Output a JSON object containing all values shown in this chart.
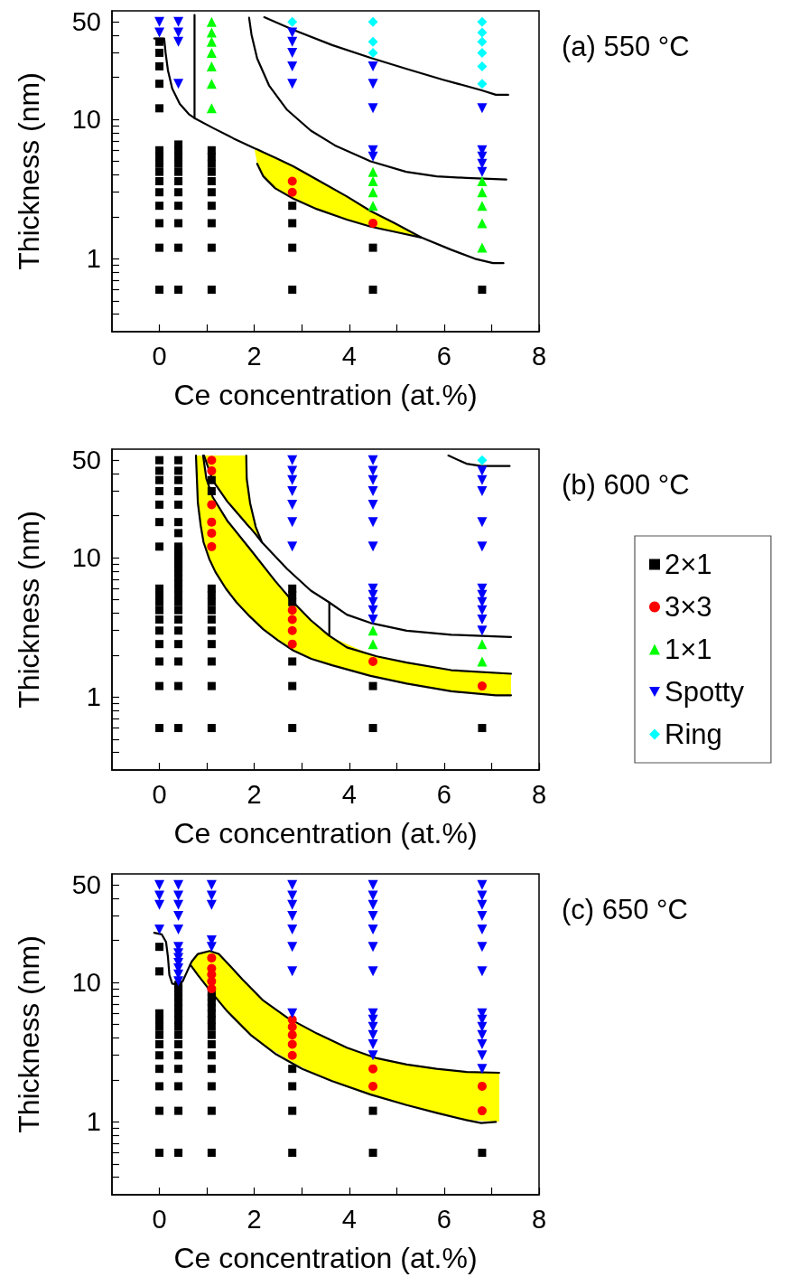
{
  "chart_data": [
    {
      "type": "scatter",
      "annotations": [
        "(a) 550 °C"
      ],
      "xlabel": "Ce concentration (at.%)",
      "ylabel": "Thickness (nm)",
      "xlim": [
        -1,
        8
      ],
      "ylim": [
        0.3,
        60
      ],
      "log": "y",
      "grid": false,
      "legend": false,
      "xticks": [
        0,
        {
          "value": 1,
          "label": null
        },
        2,
        {
          "value": 3,
          "label": null
        },
        4,
        {
          "value": 5,
          "label": null
        },
        6,
        {
          "value": 7,
          "label": null
        },
        8
      ],
      "yticks": [
        {
          "value": 0.4,
          "label": null
        },
        {
          "value": 0.5,
          "label": null
        },
        {
          "value": 0.6,
          "label": null
        },
        {
          "value": 0.7,
          "label": null
        },
        {
          "value": 0.8,
          "label": null
        },
        {
          "value": 0.9,
          "label": null
        },
        1,
        {
          "value": 2,
          "label": null
        },
        {
          "value": 3,
          "label": null
        },
        {
          "value": 4,
          "label": null
        },
        {
          "value": 5,
          "label": null
        },
        {
          "value": 6,
          "label": null
        },
        {
          "value": 7,
          "label": null
        },
        {
          "value": 8,
          "label": null
        },
        {
          "value": 9,
          "label": null
        },
        10,
        {
          "value": 20,
          "label": null
        },
        {
          "value": 30,
          "label": null
        },
        {
          "value": 40,
          "label": null
        },
        50
      ],
      "series": [
        {
          "type": "line",
          "color": "#000000",
          "x": [
            -0.11,
            0.1,
            0.13,
            0.18,
            0.27,
            0.43,
            0.62,
            0.74,
            1.12,
            1.56,
            2,
            2.06,
            2.19,
            2.44,
            2.82,
            3.32,
            3.95,
            4.45,
            4.96,
            5.52,
            6.15,
            6.65,
            7.03,
            7.25
          ],
          "values": [
            38,
            38,
            30,
            22.4,
            16.6,
            12.9,
            10.9,
            10.2,
            8.7,
            7.3,
            6.2,
            6.1,
            5.8,
            5.3,
            4.6,
            3.7,
            2.8,
            2.2,
            1.8,
            1.42,
            1.16,
            1,
            0.93,
            0.93
          ],
          "lower": [
            null,
            null,
            null,
            null,
            null,
            null,
            null,
            null,
            null,
            null,
            6.2,
            4.8,
            3.9,
            3.2,
            2.7,
            2.27,
            1.91,
            1.7,
            1.56,
            1.42,
            null,
            null,
            null,
            null
          ],
          "upper": [
            null,
            null,
            null,
            null,
            null,
            null,
            null,
            null,
            null,
            null,
            6.2,
            6.1,
            5.8,
            5.3,
            4.6,
            3.7,
            2.8,
            2.2,
            1.8,
            1.42,
            null,
            null,
            null,
            null
          ]
        },
        {
          "type": "line",
          "color": "#000000",
          "x": [
            0.74,
            0.74
          ],
          "values": [
            56,
            10.2
          ]
        },
        {
          "type": "line",
          "color": "#000000",
          "x": [
            1.89,
            1.94,
            2.06,
            2.31,
            2.69,
            3.19,
            3.7,
            4.45,
            5.2,
            5.84,
            6.47,
            7.31
          ],
          "values": [
            53.5,
            40.6,
            27.3,
            17.5,
            11.7,
            8.3,
            6.5,
            5,
            4.2,
            3.9,
            3.8,
            3.7
          ]
        },
        {
          "type": "line",
          "color": "#000000",
          "x": [
            2.21,
            2.82,
            3.64,
            4.45,
            5.21,
            5.96,
            6.78,
            7.09,
            7.35
          ],
          "values": [
            54,
            43.8,
            34.1,
            27.6,
            23,
            19.3,
            16.2,
            15,
            15
          ]
        },
        {
          "type": "line",
          "color": "#000000",
          "x": [
            2.06,
            2.19,
            2.44,
            2.82,
            3.32,
            3.95,
            4.45,
            4.96,
            5.52
          ],
          "values": [
            4.8,
            3.9,
            3.2,
            2.7,
            2.27,
            1.91,
            1.7,
            1.56,
            1.42
          ]
        },
        {
          "color": "#000000",
          "marker": "square",
          "x": [
            0,
            0,
            0,
            0,
            0,
            0,
            0,
            0,
            0,
            0,
            0,
            0,
            0,
            0,
            0,
            0.4,
            0.4,
            0.4,
            0.4,
            0.4,
            0.4,
            0.4,
            0.4,
            0.4,
            0.4,
            0.4,
            1.1,
            1.1,
            1.1,
            1.1,
            1.1,
            1.1,
            1.1,
            1.1,
            1.1,
            1.1,
            2.8,
            2.8,
            2.8,
            2.8,
            4.5,
            4.5,
            6.8
          ],
          "values": [
            0.6,
            1.2,
            1.8,
            2.4,
            3,
            3.6,
            4.2,
            4.8,
            5.4,
            6,
            12,
            18,
            24,
            30,
            36,
            0.6,
            1.2,
            1.8,
            2.4,
            3,
            3.6,
            4.2,
            4.8,
            5.4,
            6,
            6.6,
            0.6,
            1.2,
            1.8,
            2.4,
            3,
            3.6,
            4.2,
            4.8,
            5.4,
            6,
            0.6,
            1.2,
            1.8,
            2.4,
            0.6,
            1.2,
            0.6
          ]
        },
        {
          "color": "#ff0000",
          "marker": "circle",
          "x": [
            2.8,
            2.8,
            4.5
          ],
          "values": [
            3,
            3.6,
            1.8
          ]
        },
        {
          "color": "#00ff00",
          "marker": "triangle",
          "x": [
            1.1,
            1.1,
            1.1,
            1.1,
            1.1,
            1.1,
            1.1,
            4.5,
            4.5,
            4.5,
            4.5,
            6.8,
            6.8,
            6.8,
            6.8,
            6.8
          ],
          "values": [
            12,
            18,
            24,
            30,
            36,
            42,
            50,
            2.4,
            3,
            3.6,
            4.2,
            1.2,
            1.8,
            2.4,
            3,
            3.6
          ]
        },
        {
          "color": "#0000ff",
          "marker": "triangle-down",
          "x": [
            0,
            0,
            0.4,
            0.4,
            0.4,
            0.4,
            2.8,
            2.8,
            2.8,
            2.8,
            2.8,
            4.5,
            4.5,
            4.5,
            4.5,
            4.5,
            6.8,
            6.8,
            6.8,
            6.8,
            6.8
          ],
          "values": [
            42,
            50,
            18,
            36,
            42,
            50,
            18,
            24,
            30,
            36,
            42,
            5.4,
            6,
            12,
            18,
            24,
            4.2,
            4.8,
            5.4,
            6,
            12
          ]
        },
        {
          "color": "#00ffff",
          "marker": "diamond",
          "x": [
            2.8,
            4.5,
            4.5,
            4.5,
            6.8,
            6.8,
            6.8,
            6.8,
            6.8,
            6.8
          ],
          "values": [
            50,
            30,
            36,
            50,
            18,
            24,
            30,
            36,
            42,
            50
          ]
        }
      ]
    },
    {
      "type": "scatter",
      "annotations": [
        "(b) 600 °C"
      ],
      "xlabel": "Ce concentration (at.%)",
      "ylabel": "Thickness (nm)",
      "xlim": [
        -1,
        8
      ],
      "ylim": [
        0.3,
        60
      ],
      "log": "y",
      "grid": false,
      "legend": "right",
      "xticks": [
        0,
        {
          "value": 1,
          "label": null
        },
        2,
        {
          "value": 3,
          "label": null
        },
        4,
        {
          "value": 5,
          "label": null
        },
        6,
        {
          "value": 7,
          "label": null
        },
        8
      ],
      "yticks": [
        {
          "value": 0.4,
          "label": null
        },
        {
          "value": 0.5,
          "label": null
        },
        {
          "value": 0.6,
          "label": null
        },
        {
          "value": 0.7,
          "label": null
        },
        {
          "value": 0.8,
          "label": null
        },
        {
          "value": 0.9,
          "label": null
        },
        1,
        {
          "value": 2,
          "label": null
        },
        {
          "value": 3,
          "label": null
        },
        {
          "value": 4,
          "label": null
        },
        {
          "value": 5,
          "label": null
        },
        {
          "value": 6,
          "label": null
        },
        {
          "value": 7,
          "label": null
        },
        {
          "value": 8,
          "label": null
        },
        {
          "value": 9,
          "label": null
        },
        10,
        {
          "value": 20,
          "label": null
        },
        {
          "value": 30,
          "label": null
        },
        {
          "value": 40,
          "label": null
        },
        50
      ],
      "series": [
        {
          "type": "line",
          "color": "#000000",
          "x": [
            0.77,
            0.81,
            0.87,
            0.93,
            1.05,
            1.18,
            1.4,
            1.62,
            1.9,
            2.19,
            2.5,
            2.82,
            3.2,
            3.64,
            4.45,
            5.21,
            6.15,
            7.09,
            7.41
          ],
          "values": [
            54,
            24.7,
            17,
            12.9,
            9.8,
            7.9,
            6,
            4.8,
            3.8,
            3.06,
            2.55,
            2.16,
            1.88,
            1.69,
            1.42,
            1.25,
            1.1,
            1.03,
            1.03
          ],
          "lower": [
            54,
            24.7,
            17,
            12.9,
            9.8,
            7.9,
            6,
            4.8,
            3.8,
            3.06,
            2.55,
            2.16,
            1.88,
            1.69,
            1.42,
            1.25,
            1.1,
            1.03,
            1.03
          ],
          "upper": [
            54,
            54,
            54,
            51,
            30,
            25.4,
            19.3,
            15.4,
            11.6,
            8.9,
            6.3,
            4.8,
            3.55,
            2.68,
            2.02,
            1.77,
            1.56,
            1.49,
            1.47
          ]
        },
        {
          "type": "line",
          "color": "#000000",
          "x": [
            0.92,
            0.99,
            1.12,
            1.43,
            1.94,
            2.44,
            2.82,
            3.19,
            3.57,
            3.95,
            4.58,
            5.21,
            6.15,
            7.41
          ],
          "values": [
            54,
            36.8,
            27.3,
            18.4,
            11.2,
            6.8,
            4.8,
            3.56,
            2.77,
            2.27,
            1.96,
            1.77,
            1.56,
            1.47
          ]
        },
        {
          "type": "line",
          "color": "#000000",
          "x": [
            0.94,
            1.12,
            1.43,
            1.81,
            1.84,
            1.91,
            2.03,
            2.16,
            2.69,
            3.19,
            3.57,
            3.95,
            4.45,
            5.21,
            6.15,
            7.41
          ],
          "values": [
            54,
            35.9,
            25.3,
            17.9,
            17.4,
            16.4,
            14.7,
            12.9,
            8.3,
            5.8,
            4.8,
            3.9,
            3.4,
            2.99,
            2.8,
            2.7
          ],
          "lower": [
            54,
            35.9,
            25.3,
            17.9,
            17.4,
            16.4,
            14.7,
            12.9,
            null,
            null,
            null,
            null,
            null,
            null,
            null,
            null
          ],
          "upper": [
            54,
            54,
            54,
            54,
            36.8,
            24.7,
            16.6,
            12.9,
            null,
            null,
            null,
            null,
            null,
            null,
            null,
            null
          ]
        },
        {
          "type": "line",
          "color": "#000000",
          "x": [
            1.83,
            1.84,
            1.91,
            2.03,
            2.16
          ],
          "values": [
            54,
            36.8,
            24.7,
            16.6,
            12.9
          ]
        },
        {
          "type": "line",
          "color": "#000000",
          "x": [
            3.58,
            3.58
          ],
          "values": [
            4.75,
            2.77
          ]
        },
        {
          "type": "line",
          "color": "#000000",
          "x": [
            6.09,
            6.47,
            6.78,
            7.38
          ],
          "values": [
            54,
            47.2,
            45.4,
            45.4
          ]
        },
        {
          "name": "2×1",
          "color": "#000000",
          "marker": "square",
          "x": [
            0,
            0,
            0,
            0,
            0,
            0,
            0,
            0,
            0,
            0,
            0,
            0,
            0,
            0,
            0,
            0,
            0,
            0.4,
            0.4,
            0.4,
            0.4,
            0.4,
            0.4,
            0.4,
            0.4,
            0.4,
            0.4,
            0.4,
            0.4,
            0.4,
            0.4,
            0.4,
            0.4,
            0.4,
            0.4,
            0.4,
            0.4,
            0.4,
            0.4,
            0.4,
            0.4,
            0.4,
            0.4,
            0.4,
            1.1,
            1.1,
            1.1,
            1.1,
            1.1,
            1.1,
            1.1,
            1.1,
            1.1,
            1.1,
            1.1,
            1.1,
            2.8,
            2.8,
            2.8,
            2.8,
            2.8,
            2.8,
            4.5,
            4.5,
            6.8
          ],
          "values": [
            0.6,
            1.2,
            1.8,
            2.4,
            3,
            3.6,
            4.2,
            4.8,
            5.4,
            6,
            12,
            18,
            24,
            30,
            36,
            42,
            50,
            0.6,
            1.2,
            1.8,
            2.4,
            3,
            3.6,
            4.2,
            4.8,
            5.4,
            6,
            6.6,
            7.2,
            7.8,
            8.4,
            9,
            9.6,
            10.2,
            10.8,
            11.4,
            12,
            15,
            18,
            24,
            30,
            36,
            42,
            50,
            0.6,
            1.2,
            1.8,
            2.4,
            3,
            3.6,
            4.2,
            4.8,
            5.4,
            6,
            30,
            36,
            0.6,
            1.2,
            1.8,
            4.8,
            5.4,
            6,
            0.6,
            1.2,
            0.6
          ]
        },
        {
          "name": "3×3",
          "color": "#ff0000",
          "marker": "circle",
          "x": [
            1.1,
            1.1,
            1.1,
            1.1,
            1.1,
            1.1,
            2.8,
            2.8,
            2.8,
            2.8,
            4.5,
            6.8
          ],
          "values": [
            12,
            15,
            18,
            24,
            42,
            50,
            2.4,
            3,
            3.6,
            4.2,
            1.8,
            1.2
          ]
        },
        {
          "name": "1×1",
          "color": "#00ff00",
          "marker": "triangle",
          "x": [
            4.5,
            4.5,
            6.8,
            6.8
          ],
          "values": [
            2.4,
            3,
            1.8,
            2.4
          ]
        },
        {
          "name": "Spotty",
          "color": "#0000ff",
          "marker": "triangle-down",
          "x": [
            2.8,
            2.8,
            2.8,
            2.8,
            2.8,
            2.8,
            2.8,
            4.5,
            4.5,
            4.5,
            4.5,
            4.5,
            4.5,
            4.5,
            4.5,
            4.5,
            4.5,
            4.5,
            4.5,
            6.8,
            6.8,
            6.8,
            6.8,
            6.8,
            6.8,
            6.8,
            6.8,
            6.8,
            6.8,
            6.8
          ],
          "values": [
            12,
            18,
            24,
            30,
            36,
            42,
            50,
            3.6,
            4.2,
            4.8,
            5.4,
            6,
            12,
            18,
            24,
            30,
            36,
            42,
            50,
            3,
            3.6,
            4.2,
            4.8,
            5.4,
            6,
            12,
            18,
            30,
            36,
            42
          ]
        },
        {
          "name": "Ring",
          "color": "#00ffff",
          "marker": "diamond",
          "x": [
            6.8
          ],
          "values": [
            50
          ]
        }
      ]
    },
    {
      "type": "scatter",
      "annotations": [
        "(c) 650 °C"
      ],
      "xlabel": "Ce concentration (at.%)",
      "ylabel": "Thickness (nm)",
      "xlim": [
        -1,
        8
      ],
      "ylim": [
        0.3,
        60
      ],
      "log": "y",
      "grid": false,
      "legend": false,
      "xticks": [
        0,
        {
          "value": 1,
          "label": null
        },
        2,
        {
          "value": 3,
          "label": null
        },
        4,
        {
          "value": 5,
          "label": null
        },
        6,
        {
          "value": 7,
          "label": null
        },
        8
      ],
      "yticks": [
        {
          "value": 0.4,
          "label": null
        },
        {
          "value": 0.5,
          "label": null
        },
        {
          "value": 0.6,
          "label": null
        },
        {
          "value": 0.7,
          "label": null
        },
        {
          "value": 0.8,
          "label": null
        },
        {
          "value": 0.9,
          "label": null
        },
        1,
        {
          "value": 2,
          "label": null
        },
        {
          "value": 3,
          "label": null
        },
        {
          "value": 4,
          "label": null
        },
        {
          "value": 5,
          "label": null
        },
        {
          "value": 6,
          "label": null
        },
        {
          "value": 7,
          "label": null
        },
        {
          "value": 8,
          "label": null
        },
        {
          "value": 9,
          "label": null
        },
        10,
        {
          "value": 20,
          "label": null
        },
        {
          "value": 30,
          "label": null
        },
        {
          "value": 40,
          "label": null
        },
        50
      ],
      "series": [
        {
          "type": "line",
          "color": "#000000",
          "x": [
            -0.11,
            0.05,
            0.14,
            0.18,
            0.21,
            0.27,
            0.4,
            0.49,
            0.58,
            0.68,
            0.81,
            1.06,
            1.25,
            1.43,
            1.75,
            2.19,
            2.69,
            3.32,
            3.95,
            4.58,
            5.21,
            5.84,
            6.47,
            7.16
          ],
          "values": [
            22.7,
            22.1,
            19.5,
            15.2,
            11.3,
            9.8,
            9.6,
            10.2,
            11.9,
            14.1,
            16,
            16.8,
            16,
            13.8,
            10.5,
            7.4,
            5.6,
            4.3,
            3.4,
            2.86,
            2.58,
            2.4,
            2.28,
            2.25
          ],
          "lower": [
            null,
            null,
            null,
            null,
            null,
            null,
            null,
            null,
            null,
            12.9,
            11.3,
            8.8,
            7.2,
            6.2,
            4.7,
            3.6,
            2.8,
            2.17,
            1.77,
            1.52,
            1.32,
            1.16,
            1.03,
            1
          ],
          "upper": [
            null,
            null,
            null,
            null,
            null,
            null,
            null,
            null,
            null,
            14.1,
            16,
            16.8,
            16,
            13.8,
            10.5,
            7.4,
            5.6,
            4.3,
            3.4,
            2.86,
            2.58,
            2.4,
            2.28,
            2.25
          ]
        },
        {
          "type": "line",
          "color": "#000000",
          "x": [
            0.65,
            0.81,
            1.06,
            1.43,
            1.94,
            2.44,
            3.01,
            3.64,
            4.45,
            5.21,
            5.84,
            6.47,
            6.78,
            7.09
          ],
          "values": [
            13.4,
            11.3,
            8.8,
            6.2,
            4.15,
            3.08,
            2.4,
            1.96,
            1.57,
            1.32,
            1.16,
            1.03,
            0.98,
            1
          ]
        },
        {
          "color": "#000000",
          "marker": "square",
          "x": [
            0,
            0,
            0,
            0,
            0,
            0,
            0,
            0,
            0,
            0,
            0,
            0,
            0.4,
            0.4,
            0.4,
            0.4,
            0.4,
            0.4,
            0.4,
            0.4,
            0.4,
            0.4,
            0.4,
            0.4,
            0.4,
            0.4,
            0.4,
            0.4,
            1.1,
            1.1,
            1.1,
            1.1,
            1.1,
            1.1,
            1.1,
            1.1,
            1.1,
            1.1,
            1.1,
            1.1,
            1.1,
            1.1,
            2.8,
            2.8,
            2.8,
            2.8,
            4.5,
            4.5,
            6.8
          ],
          "values": [
            0.6,
            1.2,
            1.8,
            2.4,
            3,
            3.6,
            4.2,
            4.8,
            5.4,
            6,
            12,
            18,
            0.6,
            1.2,
            1.8,
            2.4,
            3,
            3.6,
            4.2,
            4.8,
            5.4,
            6,
            6.6,
            7.2,
            7.8,
            8.4,
            9,
            9.6,
            0.6,
            1.2,
            1.8,
            2.4,
            3,
            3.6,
            4.2,
            4.8,
            5.4,
            6,
            6.6,
            7.2,
            7.8,
            8.4,
            0.6,
            1.2,
            1.8,
            2.4,
            0.6,
            1.2,
            0.6
          ]
        },
        {
          "color": "#ff0000",
          "marker": "circle",
          "x": [
            1.1,
            1.1,
            1.1,
            1.1,
            1.1,
            2.8,
            2.8,
            2.8,
            2.8,
            2.8,
            4.5,
            4.5,
            6.8,
            6.8
          ],
          "values": [
            9,
            10.2,
            11.4,
            12.6,
            15,
            3,
            3.6,
            4.2,
            4.8,
            5.4,
            1.8,
            2.4,
            1.2,
            1.8
          ]
        },
        {
          "color": "#0000ff",
          "marker": "triangle-down",
          "x": [
            0,
            0,
            0,
            0,
            0.4,
            0.4,
            0.4,
            0.4,
            0.4,
            0.4,
            0.4,
            0.4,
            0.4,
            0.4,
            0.4,
            0.4,
            1.1,
            1.1,
            1.1,
            1.1,
            1.1,
            2.8,
            2.8,
            2.8,
            2.8,
            2.8,
            2.8,
            2.8,
            2.8,
            4.5,
            4.5,
            4.5,
            4.5,
            4.5,
            4.5,
            4.5,
            4.5,
            4.5,
            4.5,
            4.5,
            4.5,
            4.5,
            6.8,
            6.8,
            6.8,
            6.8,
            6.8,
            6.8,
            6.8,
            6.8,
            6.8,
            6.8,
            6.8,
            6.8,
            6.8,
            6.8
          ],
          "values": [
            24,
            36,
            42,
            50,
            10.2,
            11.4,
            12.6,
            13.8,
            15,
            16.2,
            18,
            24,
            30,
            36,
            42,
            50,
            18,
            20,
            36,
            42,
            50,
            6,
            12,
            18,
            24,
            30,
            36,
            42,
            50,
            3,
            3.6,
            4.2,
            4.8,
            5.4,
            6,
            12,
            18,
            24,
            30,
            36,
            42,
            50,
            2.4,
            3,
            3.6,
            4.2,
            4.8,
            5.4,
            6,
            12,
            18,
            24,
            30,
            36,
            42,
            50
          ]
        }
      ]
    }
  ]
}
